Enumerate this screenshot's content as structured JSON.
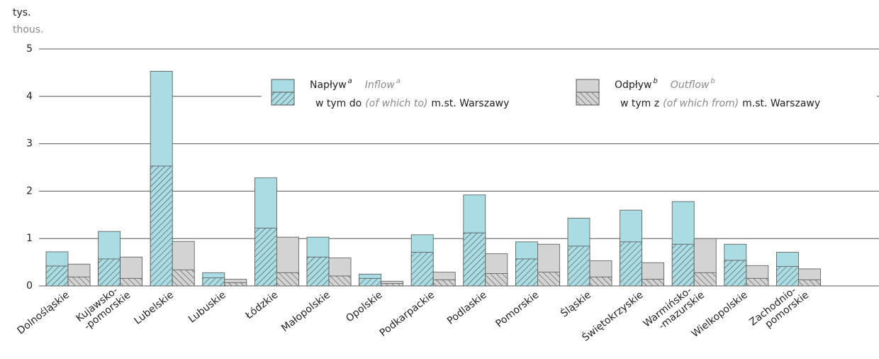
{
  "chart_data": {
    "type": "bar",
    "y_label": "tys.",
    "y_label_en": "thous.",
    "categories": [
      "Dolnośląskie",
      "Kujawsko-\n-pomorskie",
      "Lubelskie",
      "Lubuskie",
      "Łódzkie",
      "Małopolskie",
      "Opolskie",
      "Podkarpackie",
      "Podlaskie",
      "Pomorskie",
      "Śląskie",
      "Świętokrzyskie",
      "Warmińsko-\n-mazurskie",
      "Wielkopolskie",
      "Zachodnio-\npomorskie"
    ],
    "series": [
      {
        "name": "Napływ",
        "name_en": "Inflow",
        "note": "a",
        "color": "#a9dce3",
        "values": [
          0.72,
          1.15,
          4.53,
          0.28,
          2.28,
          1.03,
          0.25,
          1.08,
          1.92,
          0.93,
          1.43,
          1.6,
          1.78,
          0.88,
          0.71
        ]
      },
      {
        "name": "w tym do",
        "name_en": "(of which to)",
        "suffix": "m.st. Warszawy",
        "color": "#a9dce3",
        "hatch": true,
        "values": [
          0.42,
          0.57,
          2.53,
          0.17,
          1.22,
          0.61,
          0.16,
          0.71,
          1.12,
          0.57,
          0.84,
          0.93,
          0.88,
          0.54,
          0.41
        ]
      },
      {
        "name": "Odpływ",
        "name_en": "Outflow",
        "note": "b",
        "color": "#d3d3d3",
        "values": [
          0.46,
          0.61,
          0.94,
          0.14,
          1.03,
          0.59,
          0.1,
          0.29,
          0.68,
          0.88,
          0.53,
          0.49,
          1.0,
          0.43,
          0.36
        ]
      },
      {
        "name": "w tym z",
        "name_en": "(of which from)",
        "suffix": "m.st. Warszawy",
        "color": "#d3d3d3",
        "hatch": true,
        "values": [
          0.19,
          0.16,
          0.34,
          0.07,
          0.28,
          0.21,
          0.05,
          0.13,
          0.26,
          0.29,
          0.19,
          0.14,
          0.28,
          0.16,
          0.13
        ]
      }
    ],
    "ylim": [
      0,
      5
    ],
    "yticks": [
      0,
      1,
      2,
      3,
      4,
      5
    ],
    "grid": true
  }
}
